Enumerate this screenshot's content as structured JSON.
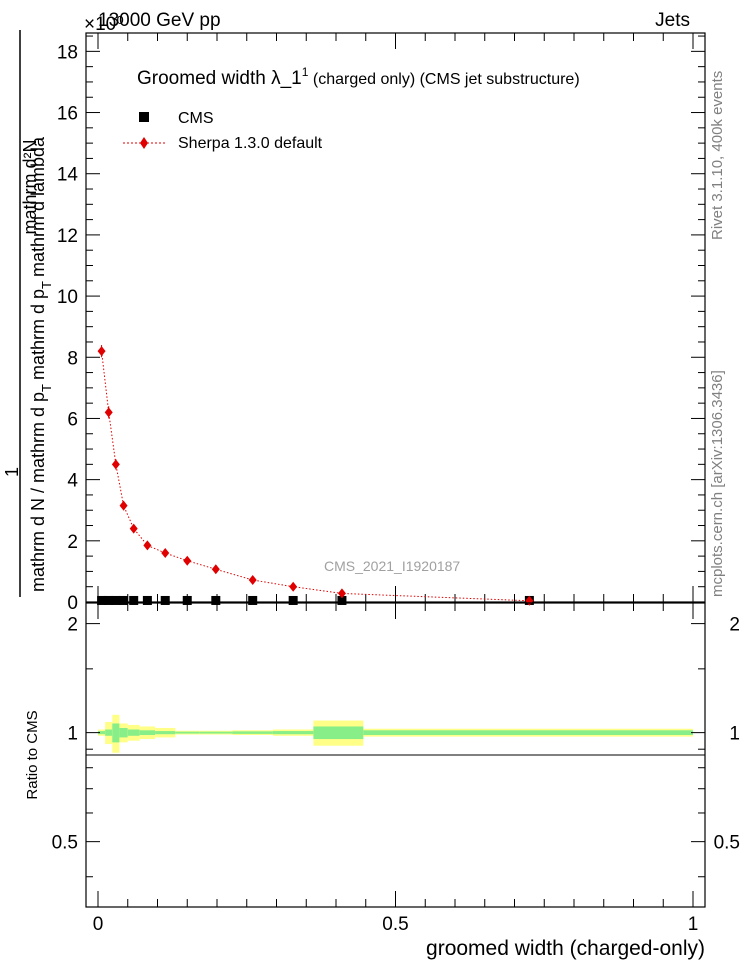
{
  "header": {
    "left": "13000 GeV pp",
    "right": "Jets",
    "exponent": "×10⁰"
  },
  "side": {
    "rivet": "Rivet 3.1.10,  400k events",
    "mcplots": "mcplots.cern.ch [arXiv:1306.3436]"
  },
  "colors": {
    "mc": "#e00000",
    "data": "#000000",
    "band_outer": "#ffff88",
    "band_inner": "#88ee88"
  },
  "chart_data": [
    {
      "type": "line",
      "title_main": "Groomed width  λ_1",
      "title_sup": "1",
      "title_rest": " (charged only) (CMS jet substructure)",
      "ylabel_numerator": "mathrm d²N",
      "ylabel_denominator": "mathrm d N / mathrm d p",
      "ylabel_tail": "mathrm d p",
      "ylabel_end": "mathrm d lambda",
      "ylabel_sub": "T",
      "ylabel_one": "1",
      "analysis": "CMS_2021_I1920187",
      "legend": {
        "data": "CMS",
        "mc": "Sherpa 1.3.0 default"
      },
      "xlim": [
        0,
        1
      ],
      "ylim": [
        0,
        18.6
      ],
      "yticks": [
        0,
        2,
        4,
        6,
        8,
        10,
        12,
        14,
        16,
        18
      ],
      "ytick_labels": [
        "0",
        "2",
        "4",
        "6",
        "8",
        "10",
        "12",
        "14",
        "16",
        "18"
      ],
      "series": [
        {
          "name": "Sherpa 1.3.0 default",
          "x": [
            0.006,
            0.018,
            0.03,
            0.043,
            0.06,
            0.083,
            0.113,
            0.15,
            0.198,
            0.26,
            0.328,
            0.41,
            0.725
          ],
          "y": [
            8.2,
            6.2,
            4.5,
            3.15,
            2.4,
            1.85,
            1.6,
            1.35,
            1.07,
            0.72,
            0.5,
            0.28,
            0.04
          ],
          "yerr": [
            0.2,
            0.2,
            0.17,
            0.15,
            0.12,
            0.1,
            0.08,
            0.07,
            0.06,
            0.05,
            0.04,
            0.03,
            0.01
          ]
        },
        {
          "name": "CMS",
          "x": [
            0.006,
            0.018,
            0.03,
            0.043,
            0.06,
            0.083,
            0.113,
            0.15,
            0.198,
            0.26,
            0.328,
            0.41,
            0.725
          ],
          "y": [
            0.05,
            0.05,
            0.05,
            0.05,
            0.05,
            0.05,
            0.05,
            0.05,
            0.05,
            0.05,
            0.05,
            0.05,
            0.05
          ]
        }
      ]
    },
    {
      "type": "area",
      "ylabel": "Ratio to CMS",
      "xlabel": "groomed width (charged-only)",
      "xlim": [
        0,
        1
      ],
      "ylim": [
        0.33,
        2.28
      ],
      "xticks": [
        0,
        0.5,
        1
      ],
      "xtick_labels": [
        "0",
        "0.5",
        "1"
      ],
      "yticks": [
        0.5,
        1,
        2
      ],
      "ytick_labels": [
        "0.5",
        "1",
        "2"
      ],
      "bins": [
        0,
        0.012,
        0.024,
        0.036,
        0.05,
        0.07,
        0.096,
        0.13,
        0.17,
        0.226,
        0.294,
        0.362,
        0.446,
        1.0
      ],
      "outer_half": [
        0.02,
        0.07,
        0.12,
        0.06,
        0.05,
        0.04,
        0.03,
        0.012,
        0.012,
        0.015,
        0.02,
        0.08,
        0.025
      ],
      "inner_half": [
        0.01,
        0.02,
        0.06,
        0.03,
        0.02,
        0.015,
        0.01,
        0.006,
        0.006,
        0.008,
        0.01,
        0.04,
        0.015
      ]
    }
  ]
}
